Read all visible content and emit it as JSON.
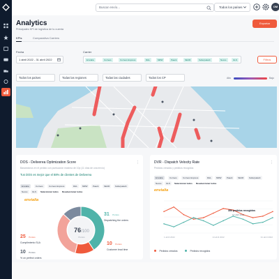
{
  "header": {
    "search_placeholder": "Buscar envío...",
    "country": "Todos los países",
    "avatar_initials": "OM"
  },
  "page": {
    "title": "Analytics",
    "subtitle": "Principales KPI de logística de tu cuenta",
    "export_label": "Exportar"
  },
  "tabs": [
    {
      "label": "KPIs",
      "active": true
    },
    {
      "label": "Comparativa Carriers",
      "active": false
    }
  ],
  "filters": {
    "date_label": "Fecha",
    "date_value": "1 abril 2022 - 31 abril 2022",
    "carrier_label": "Carrier",
    "carriers": [
      "Envialia",
      "Correos",
      "Correos Express",
      "DHL",
      "MRW",
      "Paack",
      "SEUR",
      "Kellerpaketit",
      "Nexus",
      "GLS"
    ],
    "filters_label": "Filtros"
  },
  "selectors": {
    "countries": "Todos los países",
    "regions": "Todas las regiones",
    "cities": "Todas las ciudades",
    "cp": "Todos los CP"
  },
  "map_legend": {
    "min": "Alto",
    "max": "Bajo"
  },
  "dos_card": {
    "title": "DOS - Deliverea Optimization Score",
    "subtitle": "Basándonos en el pedido con puntuación máxima de 10p (11 días de una envío)",
    "note": "Tus DOS es mejor que el 88% de clientes de Deliverea",
    "pills": [
      "Envialia",
      "Correos",
      "Correos Express",
      "DHL",
      "MRW",
      "Paack",
      "SEUR",
      "Kellerpaketit",
      "Nexus",
      "GLS",
      "Seleccionar todos",
      "Deseleccionar todos"
    ],
    "active_pill": "Envialia",
    "brand": "envialia",
    "score": "76",
    "score_total": "/100",
    "score_unit": "Puntos",
    "segments": [
      {
        "points": "31",
        "unit": "Puntos",
        "label": "Dispatching the orders",
        "color": "#4fb3a9",
        "value": 31
      },
      {
        "points": "10",
        "unit": "Puntos",
        "label": "Customer lead time",
        "color": "#ef5a3c",
        "value": 10
      },
      {
        "points": "25",
        "unit": "Puntos",
        "label": "Cumplimiento SLA",
        "color": "#f2a39a",
        "value": 25
      },
      {
        "points": "10",
        "unit": "Puntos",
        "label": "% on perfect orders",
        "color": "#7b8a9e",
        "value": 10
      }
    ]
  },
  "dvr_card": {
    "title": "DVR - Dispatch Velocity Rate",
    "subtitle": "Pedidos creados y pedidos recogidos",
    "pills": [
      "Envialia",
      "Correos",
      "Correos Express",
      "DHL",
      "MRW",
      "Paack",
      "SEUR",
      "Kellerpaketit",
      "Nexus",
      "GLS",
      "Seleccionar todos",
      "Deseleccionar todos"
    ],
    "active_pill": "Envialia",
    "brand": "envialia",
    "tooltip_value": "350 pedidos recogidos",
    "tooltip_date": "14 abril 2022",
    "legend": [
      {
        "label": "Pedidos creados",
        "color": "#ef5a3c"
      },
      {
        "label": "Pedidos recogidos",
        "color": "#4fb3a9"
      }
    ]
  },
  "chart_data": {
    "type": "line",
    "title": "DVR - Dispatch Velocity Rate",
    "xlabel": "",
    "ylabel": "",
    "x_tick_labels": [
      "1 abril 2022",
      "14 abril 2022",
      "31 abril 2022"
    ],
    "series": [
      {
        "name": "Pedidos creados",
        "values": [
          380,
          395,
          370,
          355,
          360,
          375,
          390,
          385,
          370,
          360,
          365,
          380
        ]
      },
      {
        "name": "Pedidos recogidos",
        "values": [
          340,
          330,
          345,
          360,
          350,
          335,
          350,
          365,
          355,
          340,
          345,
          360
        ]
      }
    ]
  }
}
